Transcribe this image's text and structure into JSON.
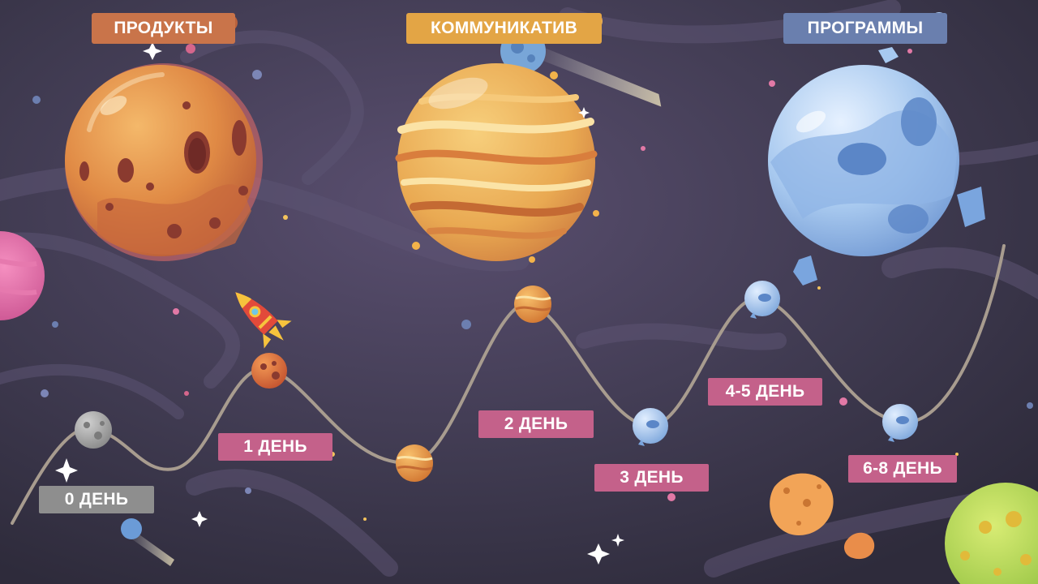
{
  "categories": [
    {
      "label": "ПРОДУКТЫ",
      "color": "#c9744a"
    },
    {
      "label": "КОММУНИКАТИВ",
      "color": "#e3a545"
    },
    {
      "label": "ПРОГРАММЫ",
      "color": "#6a7fae"
    }
  ],
  "days": [
    {
      "label": "0 ДЕНЬ",
      "color": "#8e8e8e"
    },
    {
      "label": "1 ДЕНЬ",
      "color": "#c4618a"
    },
    {
      "label": "2 ДЕНЬ",
      "color": "#c4618a"
    },
    {
      "label": "3 ДЕНЬ",
      "color": "#c4618a"
    },
    {
      "label": "4-5 ДЕНЬ",
      "color": "#c4618a"
    },
    {
      "label": "6-8 ДЕНЬ",
      "color": "#c4618a"
    }
  ],
  "colors": {
    "background": "#3e3a4d",
    "path": "#a89c8f",
    "star": "#ffffff"
  },
  "icons": {
    "rocket": "rocket-icon",
    "planets": [
      "mars-planet-icon",
      "jupiter-planet-icon",
      "ice-planet-icon"
    ]
  }
}
